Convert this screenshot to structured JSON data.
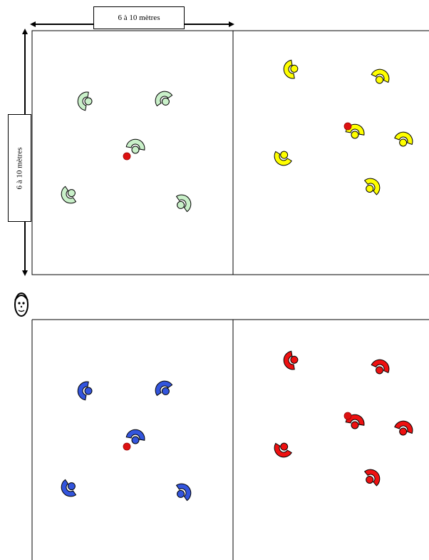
{
  "dimensions": {
    "width_label": "6 à 10 mètres",
    "height_label": "6 à 10 mètres"
  },
  "colors": {
    "green_team": "#c9f0c9",
    "yellow_team": "#ffff00",
    "blue_team": "#3355dd",
    "red_team": "#ee1111",
    "ball": "#dd1111"
  },
  "icons": {
    "coach": "coach-face-icon",
    "player": "player-icon",
    "ball": "ball-icon"
  },
  "teams": [
    {
      "name": "green",
      "players": 5,
      "has_ball": true
    },
    {
      "name": "yellow",
      "players": 6,
      "has_ball": true
    },
    {
      "name": "blue",
      "players": 5,
      "has_ball": true
    },
    {
      "name": "red",
      "players": 6,
      "has_ball": true
    }
  ]
}
